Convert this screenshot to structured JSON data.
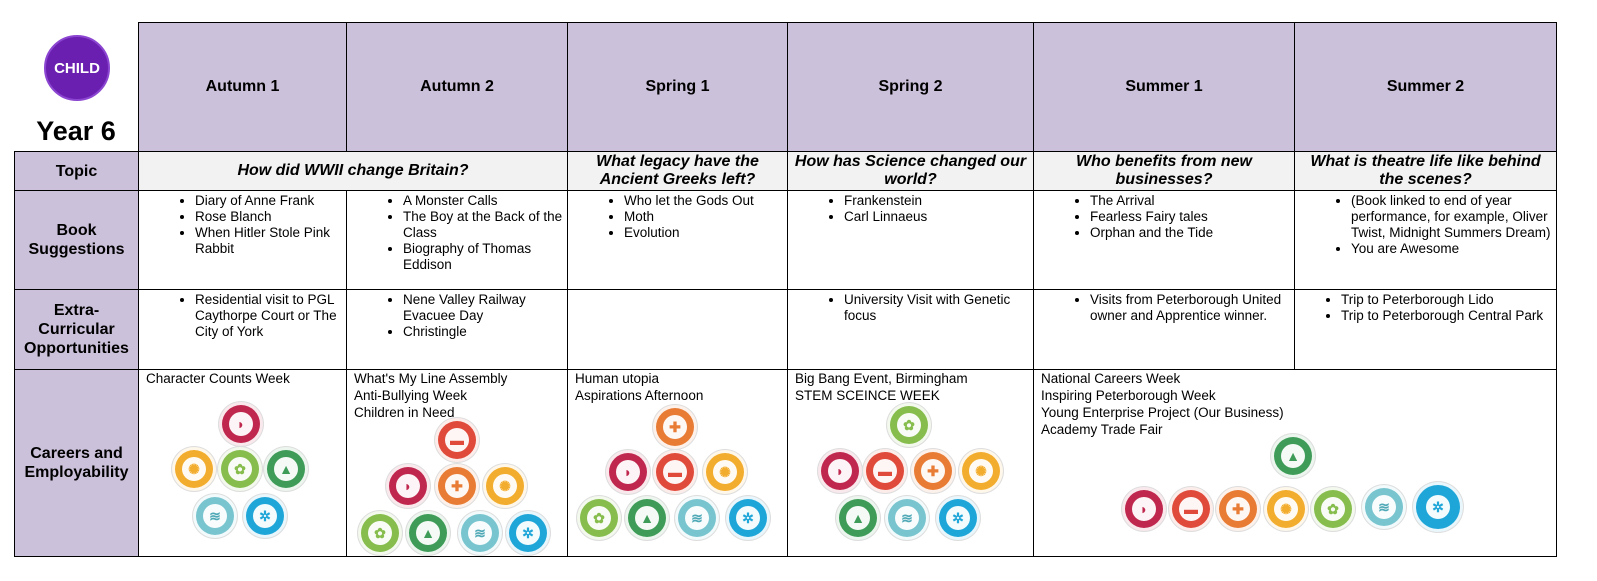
{
  "logo": {
    "text": "CHILD"
  },
  "year_label": "Year 6",
  "terms": [
    "Autumn 1",
    "Autumn 2",
    "Spring 1",
    "Spring 2",
    "Summer 1",
    "Summer 2"
  ],
  "row_labels": {
    "topic": "Topic",
    "books": "Book Suggestions",
    "extra": "Extra-Curricular Opportunities",
    "careers": "Careers and Employability"
  },
  "topics": [
    "How did WWII change Britain?",
    "What legacy have the Ancient Greeks left?",
    "How has Science changed our world?",
    "Who benefits from new businesses?",
    "What is theatre life like behind the scenes?"
  ],
  "books": [
    [
      "Diary of Anne Frank",
      "Rose Blanch",
      "When Hitler Stole Pink Rabbit"
    ],
    [
      "A Monster Calls",
      "The Boy at the Back of the Class",
      "Biography of Thomas Eddison"
    ],
    [
      "Who let the Gods Out",
      "Moth",
      "Evolution"
    ],
    [
      "Frankenstein",
      "Carl Linnaeus"
    ],
    [
      "The Arrival",
      "Fearless Fairy tales",
      "Orphan and the Tide"
    ],
    [
      "(Book linked to end of year performance, for example, Oliver Twist, Midnight Summers Dream)",
      "You are Awesome"
    ]
  ],
  "extra": [
    [
      "Residential visit to PGL Caythorpe Court or The City of York"
    ],
    [
      "Nene Valley Railway Evacuee Day",
      "Christingle"
    ],
    [],
    [
      "University Visit with Genetic focus"
    ],
    [
      "Visits from Peterborough United owner and Apprentice winner."
    ],
    [
      "Trip to Peterborough Lido",
      "Trip to Peterborough Central Park"
    ]
  ],
  "careers": [
    [
      "Character Counts Week"
    ],
    [
      "What's My Line Assembly",
      "Anti-Bullying Week",
      "Children in Need"
    ],
    [
      "Human utopia",
      "Aspirations Afternoon"
    ],
    [
      "Big Bang Event, Birmingham",
      "STEM SCEINCE WEEK"
    ],
    [
      "National Careers Week",
      "Inspiring Peterborough Week",
      "Young Enterprise Project (Our Business)",
      "Academy Trade Fair"
    ]
  ],
  "badge_icons": {
    "listening": "sound-waves-icon",
    "speaking": "speech-bubble-icon",
    "problem_solving": "puzzle-piece-icon",
    "creativity": "lightbulb-icon",
    "staying_positive": "leaf-icon",
    "aiming_high": "mountain-flag-icon",
    "leadership": "whistle-icon",
    "teamwork": "people-circle-icon"
  },
  "colors": {
    "header_bg": "#ccc1da",
    "topic_bg": "#f2f2f2",
    "logo_purple": "#6a1fb0"
  }
}
